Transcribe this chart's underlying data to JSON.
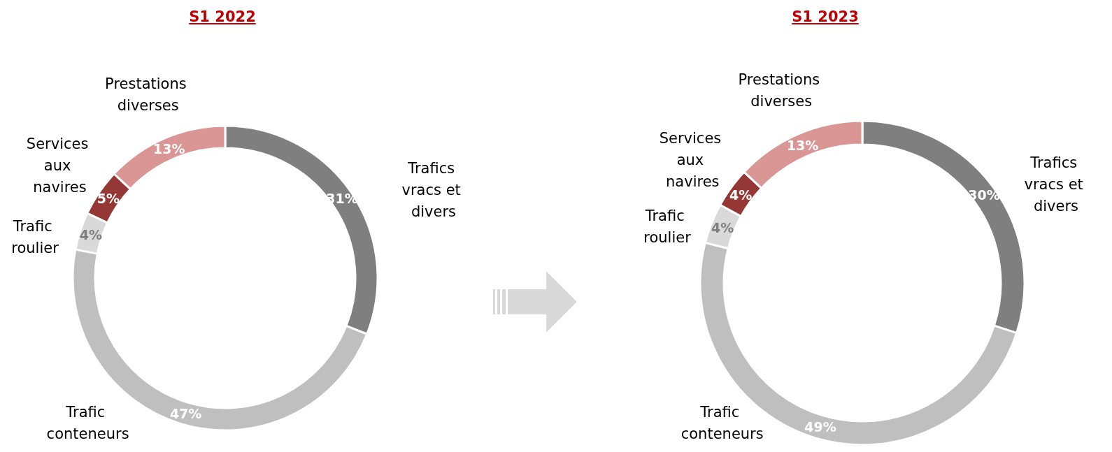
{
  "chart_data": [
    {
      "type": "donut",
      "title": "S1 2022",
      "categories": [
        "Trafics vracs et divers",
        "Trafic conteneurs",
        "Trafic roulier",
        "Services aux navires",
        "Prestations diverses"
      ],
      "values": [
        31,
        47,
        4,
        5,
        13
      ],
      "value_labels": [
        "31%",
        "47%",
        "4%",
        "5%",
        "13%"
      ],
      "colors": [
        "#7f7f7f",
        "#bfbfbf",
        "#d9d9d9",
        "#953735",
        "#d99694"
      ],
      "legend": false
    },
    {
      "type": "donut",
      "title": "S1 2023",
      "categories": [
        "Trafics vracs et divers",
        "Trafic conteneurs",
        "Trafic roulier",
        "Services aux navires",
        "Prestations diverses"
      ],
      "values": [
        30,
        49,
        4,
        4,
        13
      ],
      "value_labels": [
        "30%",
        "49%",
        "4%",
        "4%",
        "13%"
      ],
      "colors": [
        "#7f7f7f",
        "#bfbfbf",
        "#d9d9d9",
        "#953735",
        "#d99694"
      ],
      "legend": false
    }
  ]
}
